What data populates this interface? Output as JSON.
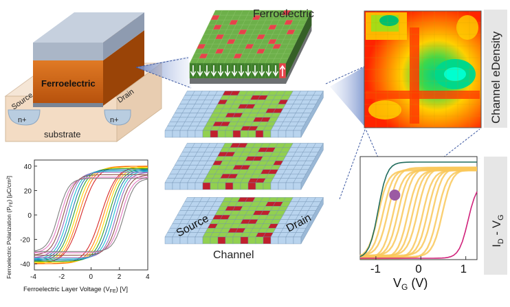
{
  "device": {
    "ferroelectric_label": "Ferroelectric",
    "source_label": "Source",
    "drain_label": "Drain",
    "n_plus_left": "n+",
    "n_plus_right": "n+",
    "substrate_label": "substrate",
    "colors": {
      "gate": "#aab6c7",
      "ferroelectric": "#c95f12",
      "substrate": "#f3dcc4",
      "n_plus": "#b9cde0"
    }
  },
  "ferroelectric_layer": {
    "title": "Ferroelectric",
    "colors": {
      "domain_green": "#6db04a",
      "domain_red": "#e7424b",
      "front_dark": "#3f7f2c"
    }
  },
  "channel_layers": {
    "source_label": "Source",
    "drain_label": "Drain",
    "channel_label": "Channel",
    "colors": {
      "cell_blue": "#b9d4ee",
      "cell_green": "#92d050",
      "cell_red": "#c0202d"
    }
  },
  "density_map": {
    "side_label": "Channel eDensity",
    "colors": {
      "high": "#ff2000",
      "mid": "#ffd000",
      "low": "#00c070"
    }
  },
  "id_vg": {
    "side_label": "I",
    "side_sub_d": "D",
    "side_dash": " - V",
    "side_sub_g": "G",
    "xlabel": "V",
    "xlabel_sub": "G",
    "xlabel_unit": " (V)",
    "xticks": [
      "-1",
      "0",
      "1"
    ],
    "colors": {
      "bundle": "#f9c85a",
      "teal": "#1f6b5c",
      "magenta": "#d0217a",
      "marker": "#9b5aa3"
    }
  },
  "chart_data": {
    "type": "line",
    "xlabel": "Ferroelectric Layer Voltage (V",
    "xlabel_sub": "FE",
    "xlabel_end": ") [V]",
    "ylabel": "Ferroelectric Polarization (P",
    "ylabel_sub": "FE",
    "ylabel_end": ") [μC/cm²]",
    "xlim": [
      -4,
      4
    ],
    "ylim": [
      -45,
      45
    ],
    "xticks": [
      "-4",
      "-2",
      "0",
      "2",
      "4"
    ],
    "yticks": [
      "40",
      "20",
      "0",
      "-20",
      "-40"
    ],
    "series": [
      {
        "color": "#d62728",
        "x": [
          -4,
          -2,
          0,
          2,
          4
        ],
        "y": [
          -40,
          -38,
          -20,
          30,
          40
        ]
      },
      {
        "color": "#ff7f0e",
        "x": [
          -4,
          -2,
          0,
          2,
          4
        ],
        "y": [
          -40,
          -36,
          -10,
          33,
          40
        ]
      },
      {
        "color": "#ffd700",
        "x": [
          -4,
          -2,
          0,
          2,
          4
        ],
        "y": [
          -39,
          -33,
          0,
          35,
          39
        ]
      },
      {
        "color": "#2ca02c",
        "x": [
          -4,
          -2,
          0,
          2,
          4
        ],
        "y": [
          -38,
          -30,
          8,
          36,
          38
        ]
      },
      {
        "color": "#1f77b4",
        "x": [
          -4,
          -2,
          0,
          2,
          4
        ],
        "y": [
          -37,
          -25,
          15,
          37,
          37
        ]
      },
      {
        "color": "#17becf",
        "x": [
          -4,
          -2,
          0,
          2,
          4
        ],
        "y": [
          -36,
          -20,
          20,
          36,
          36
        ]
      },
      {
        "color": "#9467bd",
        "x": [
          -4,
          -2,
          0,
          2,
          4
        ],
        "y": [
          -35,
          -15,
          22,
          34,
          35
        ]
      },
      {
        "color": "#8c564b",
        "x": [
          -4,
          -2,
          0,
          2,
          4
        ],
        "y": [
          -34,
          -10,
          25,
          33,
          33
        ]
      },
      {
        "color": "#e377c2",
        "x": [
          -4,
          -2,
          0,
          2,
          4
        ],
        "y": [
          -33,
          -5,
          26,
          31,
          31
        ]
      },
      {
        "color": "#7f7f7f",
        "x": [
          -4,
          -2,
          0,
          2,
          4
        ],
        "y": [
          -32,
          0,
          27,
          30,
          30
        ]
      }
    ]
  }
}
